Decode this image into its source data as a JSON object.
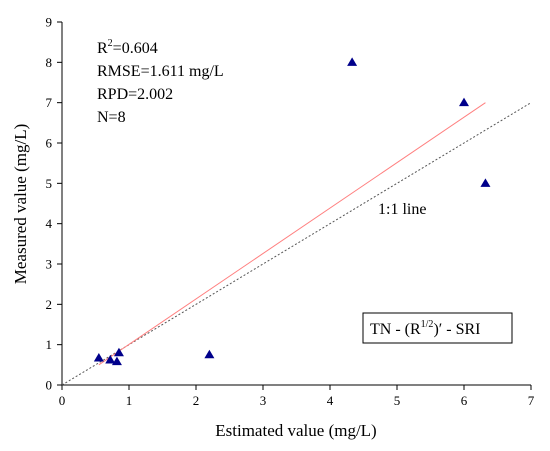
{
  "chart_data": {
    "type": "scatter",
    "xlabel": "Estimated value (mg/L)",
    "ylabel": "Measured value (mg/L)",
    "xlim": [
      0,
      7
    ],
    "ylim": [
      0,
      9
    ],
    "xticks": [
      "0",
      "1",
      "2",
      "3",
      "4",
      "5",
      "6",
      "7"
    ],
    "yticks": [
      "0",
      "1",
      "2",
      "3",
      "4",
      "5",
      "6",
      "7",
      "8",
      "9"
    ],
    "grid": false,
    "points": [
      {
        "x": 0.55,
        "y": 0.67
      },
      {
        "x": 0.72,
        "y": 0.62
      },
      {
        "x": 0.82,
        "y": 0.58
      },
      {
        "x": 0.85,
        "y": 0.8
      },
      {
        "x": 2.2,
        "y": 0.75
      },
      {
        "x": 4.33,
        "y": 8.0
      },
      {
        "x": 6.0,
        "y": 7.0
      },
      {
        "x": 6.32,
        "y": 5.0
      }
    ],
    "marker": "triangle",
    "marker_color": "#00008b",
    "fit_line": {
      "x": [
        0.55,
        6.32
      ],
      "y": [
        0.5,
        7.0
      ],
      "color": "#ff7f7f"
    },
    "reference_line": {
      "x": [
        0,
        7
      ],
      "y": [
        0,
        7.0
      ],
      "style": "dotted",
      "color": "#555555"
    },
    "annotation_line_label": "1:1 line",
    "stats": {
      "r2_base": "R",
      "r2_sup": "2",
      "r2_value": "=0.604",
      "rmse": "RMSE=1.611 mg/L",
      "rpd": "RPD=2.002",
      "n": "N=8"
    },
    "model_label": {
      "prefix": "TN - (R",
      "sup": "1/2",
      "suffix": ")′ - SRI"
    }
  }
}
